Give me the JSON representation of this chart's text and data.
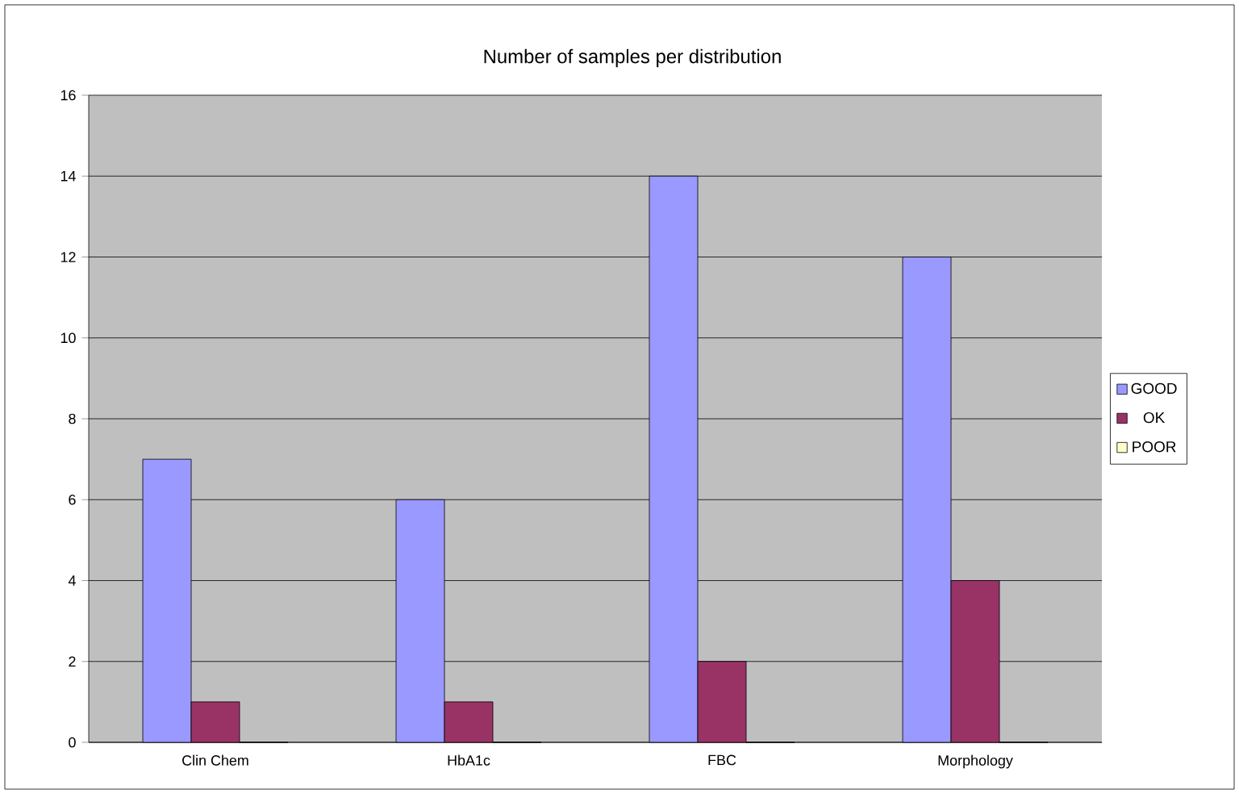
{
  "chart_data": {
    "type": "bar",
    "title": "Number of samples per distribution",
    "categories": [
      "Clin Chem",
      "HbA1c",
      "FBC",
      "Morphology"
    ],
    "series": [
      {
        "name": "GOOD",
        "color": "#9999ff",
        "values": [
          7,
          6,
          14,
          12
        ]
      },
      {
        "name": "OK",
        "color": "#993366",
        "values": [
          1,
          1,
          2,
          4
        ]
      },
      {
        "name": "POOR",
        "color": "#ffffcc",
        "values": [
          0,
          0,
          0,
          0
        ]
      }
    ],
    "ylim": [
      0,
      16
    ],
    "yticks": [
      0,
      2,
      4,
      6,
      8,
      10,
      12,
      14,
      16
    ],
    "grid": "y",
    "legend": "right"
  }
}
